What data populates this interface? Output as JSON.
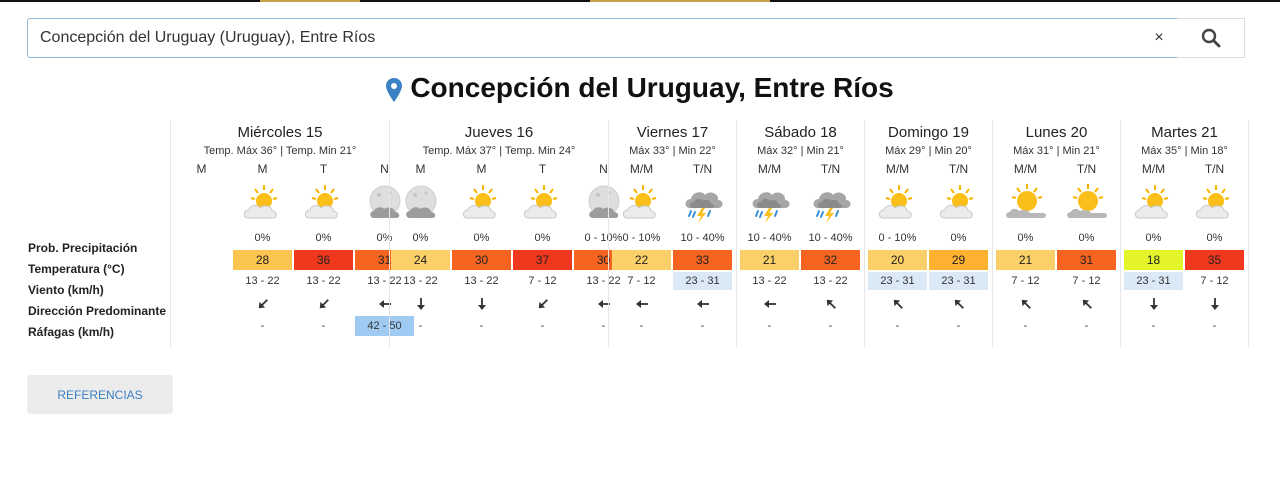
{
  "search": {
    "value": "Concepción del Uruguay (Uruguay), Entre Ríos",
    "clear_label": "×"
  },
  "title": "Concepción del Uruguay, Entre Ríos",
  "row_labels": [
    "Prob. Precipitación",
    "Temperatura (°C)",
    "Viento (km/h)",
    "Dirección Predominante",
    "Ráfagas (km/h)"
  ],
  "days": [
    {
      "name": "Miércoles 15",
      "temps": "Temp. Máx 36° | Temp. Min 21°",
      "columns": [
        {
          "period": "M",
          "icon": "none",
          "prob": "",
          "temp": "",
          "temp_color": "",
          "wind": "",
          "wind_color": "",
          "dir": "",
          "gust": "",
          "gust_color": ""
        },
        {
          "period": "M",
          "icon": "sun-cloud-icon",
          "prob": "0%",
          "temp": "28",
          "temp_color": "#fcc450",
          "wind": "13 - 22",
          "wind_color": "",
          "dir": "sw",
          "gust": "-",
          "gust_color": ""
        },
        {
          "period": "T",
          "icon": "sun-cloud-icon",
          "prob": "0%",
          "temp": "36",
          "temp_color": "#f0381f",
          "wind": "13 - 22",
          "wind_color": "",
          "dir": "sw",
          "gust": "-",
          "gust_color": ""
        },
        {
          "period": "N",
          "icon": "moon-cloud-icon",
          "prob": "0%",
          "temp": "31",
          "temp_color": "#f7641f",
          "wind": "13 - 22",
          "wind_color": "",
          "dir": "w",
          "gust": "42 - 50",
          "gust_color": "#9fcaf2"
        }
      ]
    },
    {
      "name": "Jueves 16",
      "temps": "Temp. Máx 37° | Temp. Min 24°",
      "columns": [
        {
          "period": "M",
          "icon": "moon-cloud-icon",
          "prob": "0%",
          "temp": "24",
          "temp_color": "#fcd068",
          "wind": "13 - 22",
          "wind_color": "",
          "dir": "s",
          "gust": "-",
          "gust_color": ""
        },
        {
          "period": "M",
          "icon": "sun-cloud-icon",
          "prob": "0%",
          "temp": "30",
          "temp_color": "#f7641f",
          "wind": "13 - 22",
          "wind_color": "",
          "dir": "s",
          "gust": "-",
          "gust_color": ""
        },
        {
          "period": "T",
          "icon": "sun-cloud-icon",
          "prob": "0%",
          "temp": "37",
          "temp_color": "#f0381f",
          "wind": "7 - 12",
          "wind_color": "",
          "dir": "sw",
          "gust": "-",
          "gust_color": ""
        },
        {
          "period": "N",
          "icon": "moon-cloud-icon",
          "prob": "0 - 10%",
          "temp": "30",
          "temp_color": "#f7641f",
          "wind": "13 - 22",
          "wind_color": "",
          "dir": "w",
          "gust": "-",
          "gust_color": ""
        }
      ]
    },
    {
      "name": "Viernes 17",
      "temps": "Máx 33° | Min 22°",
      "columns": [
        {
          "period": "M/M",
          "icon": "sun-cloud-icon",
          "prob": "0 - 10%",
          "temp": "22",
          "temp_color": "#fcd068",
          "wind": "7 - 12",
          "wind_color": "",
          "dir": "w",
          "gust": "-",
          "gust_color": ""
        },
        {
          "period": "T/N",
          "icon": "storm-icon",
          "prob": "10 - 40%",
          "temp": "33",
          "temp_color": "#f7641f",
          "wind": "23 - 31",
          "wind_color": "#dbe9f6",
          "dir": "w",
          "gust": "-",
          "gust_color": ""
        }
      ]
    },
    {
      "name": "Sábado 18",
      "temps": "Máx 32° | Min 21°",
      "columns": [
        {
          "period": "M/M",
          "icon": "storm-icon",
          "prob": "10 - 40%",
          "temp": "21",
          "temp_color": "#fcd068",
          "wind": "13 - 22",
          "wind_color": "",
          "dir": "w",
          "gust": "-",
          "gust_color": ""
        },
        {
          "period": "T/N",
          "icon": "storm-icon",
          "prob": "10 - 40%",
          "temp": "32",
          "temp_color": "#f7641f",
          "wind": "13 - 22",
          "wind_color": "",
          "dir": "nw",
          "gust": "-",
          "gust_color": ""
        }
      ]
    },
    {
      "name": "Domingo 19",
      "temps": "Máx 29° | Min 20°",
      "columns": [
        {
          "period": "M/M",
          "icon": "sun-cloud-icon",
          "prob": "0 - 10%",
          "temp": "20",
          "temp_color": "#fcd068",
          "wind": "23 - 31",
          "wind_color": "#dbe9f6",
          "dir": "nw",
          "gust": "-",
          "gust_color": ""
        },
        {
          "period": "T/N",
          "icon": "sun-cloud-icon",
          "prob": "0%",
          "temp": "29",
          "temp_color": "#fcb230",
          "wind": "23 - 31",
          "wind_color": "#dbe9f6",
          "dir": "nw",
          "gust": "-",
          "gust_color": ""
        }
      ]
    },
    {
      "name": "Lunes 20",
      "temps": "Máx 31° | Min 21°",
      "columns": [
        {
          "period": "M/M",
          "icon": "sun-grey-cloud-icon",
          "prob": "0%",
          "temp": "21",
          "temp_color": "#fcd068",
          "wind": "7 - 12",
          "wind_color": "",
          "dir": "nw",
          "gust": "-",
          "gust_color": ""
        },
        {
          "period": "T/N",
          "icon": "sun-grey-cloud-icon",
          "prob": "0%",
          "temp": "31",
          "temp_color": "#f7641f",
          "wind": "7 - 12",
          "wind_color": "",
          "dir": "nw",
          "gust": "-",
          "gust_color": ""
        }
      ]
    },
    {
      "name": "Martes 21",
      "temps": "Máx 35° | Min 18°",
      "columns": [
        {
          "period": "M/M",
          "icon": "sun-cloud-icon",
          "prob": "0%",
          "temp": "18",
          "temp_color": "#e3f52a",
          "wind": "23 - 31",
          "wind_color": "#dbe9f6",
          "dir": "s",
          "gust": "-",
          "gust_color": ""
        },
        {
          "period": "T/N",
          "icon": "sun-cloud-icon",
          "prob": "0%",
          "temp": "35",
          "temp_color": "#f0381f",
          "wind": "7 - 12",
          "wind_color": "",
          "dir": "s",
          "gust": "-",
          "gust_color": ""
        }
      ]
    }
  ],
  "references_label": "REFERENCIAS"
}
